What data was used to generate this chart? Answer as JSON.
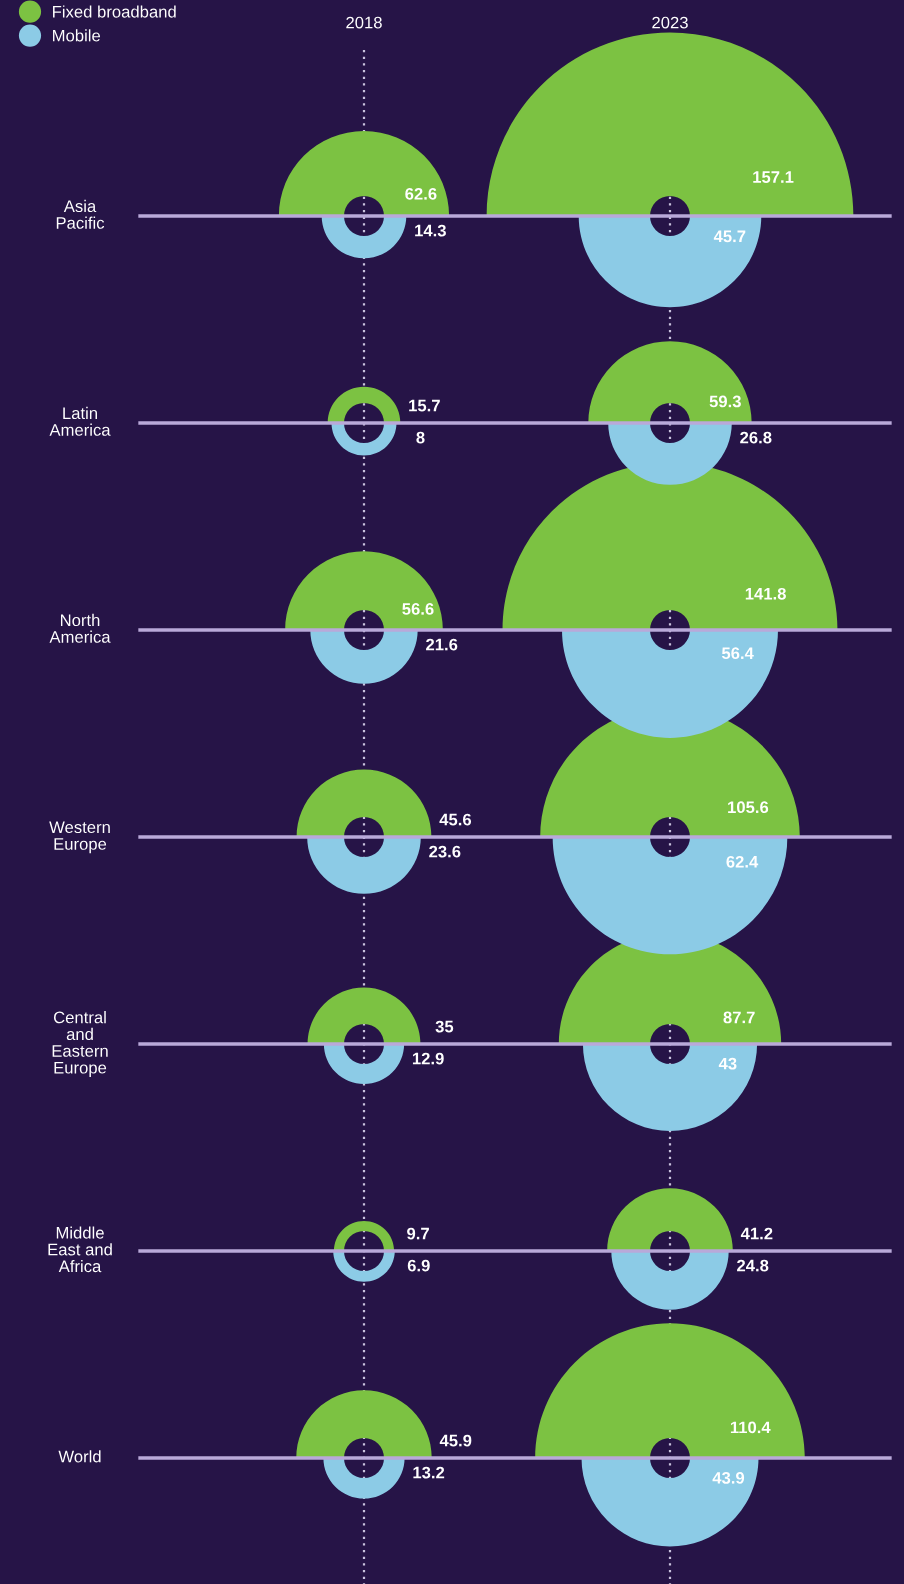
{
  "chart_data": {
    "type": "other",
    "categories": [
      "Asia\nPacific",
      "Latin\nAmerica",
      "North\nAmerica",
      "Western\nEurope",
      "Central\nand\nEastern\nEurope",
      "Middle\nEast and\nAfrica",
      "World"
    ],
    "annotations": [
      "2018",
      "2023"
    ],
    "series": [
      {
        "name": "Fixed broadband",
        "color": "#7cc242",
        "values": [
          62.6,
          15.7,
          56.6,
          45.6,
          35,
          9.7,
          45.9
        ]
      },
      {
        "name": "Mobile",
        "color": "#8ccbe6",
        "values": [
          14.3,
          8,
          21.6,
          23.6,
          12.9,
          6.9,
          13.2
        ]
      },
      {
        "color": "#7cc242",
        "values": [
          157.1,
          59.3,
          141.8,
          105.6,
          87.7,
          41.2,
          110.4
        ]
      },
      {
        "color": "#8ccbe6",
        "values": [
          45.7,
          26.8,
          56.4,
          62.4,
          43,
          24.8,
          43.9
        ]
      }
    ],
    "data_labels": true,
    "legend": "top left"
  }
}
